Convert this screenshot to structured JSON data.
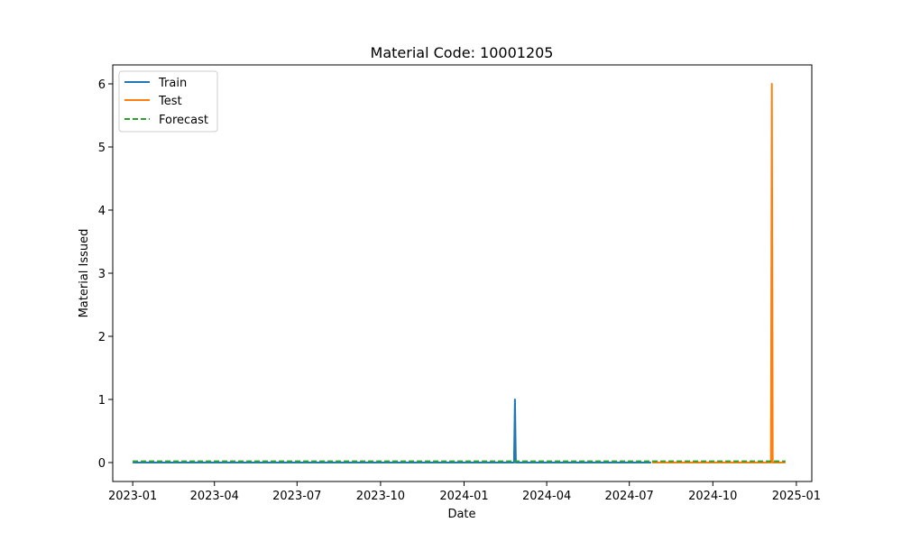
{
  "chart_data": {
    "type": "line",
    "title": "Material Code: 10001205",
    "xlabel": "Date",
    "ylabel": "Material Issued",
    "x_tick_labels": [
      "2023-01",
      "2023-04",
      "2023-07",
      "2023-10",
      "2024-01",
      "2024-04",
      "2024-07",
      "2024-10",
      "2025-01"
    ],
    "y_tick_labels": [
      "0",
      "1",
      "2",
      "3",
      "4",
      "5",
      "6"
    ],
    "y_ticks": [
      0,
      1,
      2,
      3,
      4,
      5,
      6
    ],
    "ylim": [
      -0.3,
      6.3
    ],
    "xlim": [
      "2022-12-10",
      "2025-01-18"
    ],
    "grid": false,
    "legend_position": "upper left",
    "series": [
      {
        "name": "Train",
        "color": "#1f77b4",
        "style": "solid",
        "x": [
          "2023-01-01",
          "2024-02-25",
          "2024-02-26",
          "2024-02-27",
          "2024-07-25"
        ],
        "y": [
          0,
          0,
          1,
          0,
          0
        ]
      },
      {
        "name": "Test",
        "color": "#ff7f0e",
        "style": "solid",
        "x": [
          "2024-07-26",
          "2024-12-04",
          "2024-12-05",
          "2024-12-06",
          "2024-12-20"
        ],
        "y": [
          0,
          0,
          6,
          0,
          0
        ]
      },
      {
        "name": "Forecast",
        "color": "#2ca02c",
        "style": "dashed",
        "x": [
          "2023-01-01",
          "2024-12-20"
        ],
        "y": [
          0.02,
          0.02
        ]
      }
    ]
  }
}
